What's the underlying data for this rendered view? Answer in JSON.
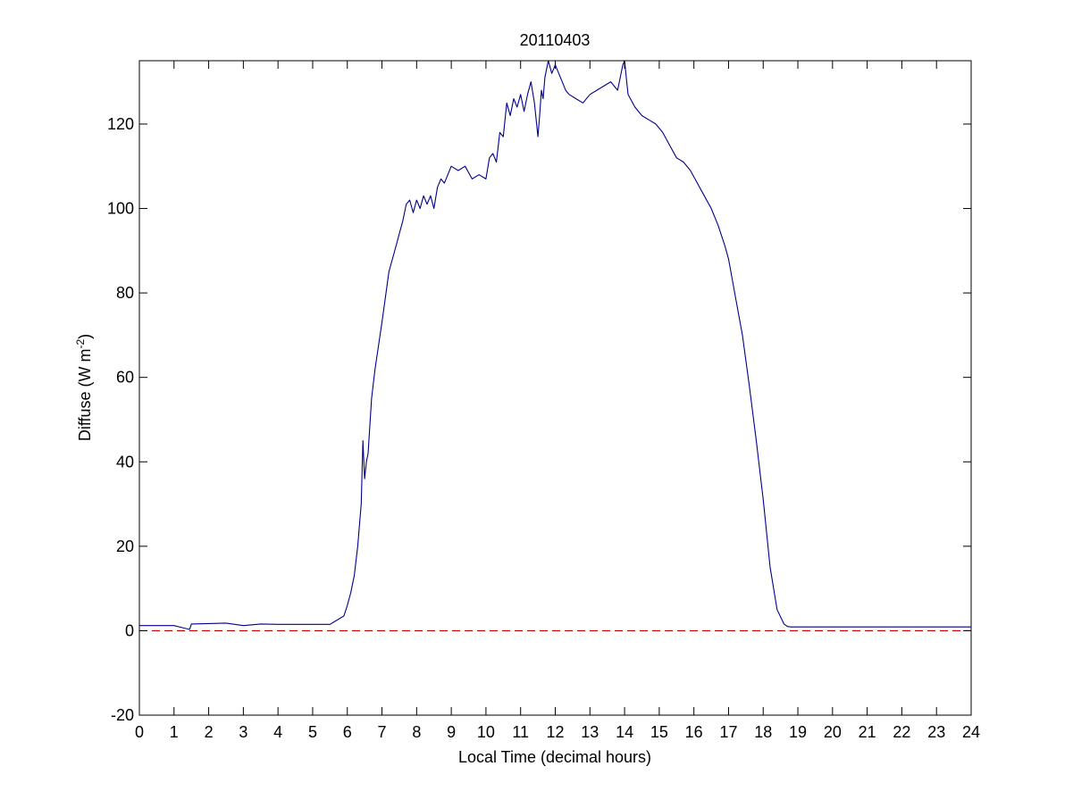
{
  "chart_data": {
    "type": "line",
    "title": "20110403",
    "xlabel": "Local Time (decimal hours)",
    "ylabel": "Diffuse (W m",
    "ylabel_superscript": "-2",
    "ylabel_close": ")",
    "xlim": [
      0,
      24
    ],
    "ylim": [
      -20,
      135
    ],
    "xticks": [
      0,
      1,
      2,
      3,
      4,
      5,
      6,
      7,
      8,
      9,
      10,
      11,
      12,
      13,
      14,
      15,
      16,
      17,
      18,
      19,
      20,
      21,
      22,
      23,
      24
    ],
    "yticks": [
      -20,
      0,
      20,
      40,
      60,
      80,
      100,
      120
    ],
    "grid": false,
    "colors": {
      "series": "#00008b",
      "reference": "#c00000",
      "axes": "#000000"
    },
    "reference_line": {
      "y": 0,
      "style": "dashed"
    },
    "series": [
      {
        "x": [
          0,
          1,
          1.2,
          1.45,
          1.5,
          2,
          2.5,
          3,
          3.5,
          4,
          4.5,
          5,
          5.5,
          5.7,
          5.9,
          6.0,
          6.1,
          6.2,
          6.3,
          6.4,
          6.45,
          6.5,
          6.55,
          6.6,
          6.7,
          6.8,
          7.0,
          7.2,
          7.4,
          7.5,
          7.6,
          7.7,
          7.8,
          7.9,
          8.0,
          8.1,
          8.2,
          8.3,
          8.4,
          8.5,
          8.6,
          8.7,
          8.8,
          9.0,
          9.2,
          9.4,
          9.6,
          9.8,
          10.0,
          10.1,
          10.2,
          10.3,
          10.4,
          10.5,
          10.6,
          10.7,
          10.8,
          10.9,
          11.0,
          11.1,
          11.2,
          11.3,
          11.4,
          11.5,
          11.55,
          11.6,
          11.65,
          11.7,
          11.8,
          11.9,
          12.0,
          12.1,
          12.2,
          12.3,
          12.4,
          12.6,
          12.8,
          13.0,
          13.2,
          13.4,
          13.6,
          13.8,
          13.95,
          14.0,
          14.05,
          14.1,
          14.3,
          14.5,
          14.7,
          14.9,
          15.1,
          15.3,
          15.5,
          15.7,
          15.9,
          16.1,
          16.3,
          16.5,
          16.7,
          16.9,
          17.0,
          17.2,
          17.4,
          17.6,
          17.8,
          18.0,
          18.2,
          18.4,
          18.6,
          18.7,
          18.8,
          18.9,
          19.0,
          19.5,
          20,
          21,
          22,
          23,
          24
        ],
        "y": [
          1.2,
          1.2,
          0.8,
          0.3,
          1.6,
          1.7,
          1.8,
          1.2,
          1.6,
          1.5,
          1.5,
          1.5,
          1.5,
          2.5,
          3.5,
          6,
          9,
          13,
          20,
          30,
          45,
          36,
          40,
          42,
          55,
          62,
          73,
          85,
          91,
          94,
          97,
          101,
          102,
          99,
          102,
          100,
          103,
          101,
          103,
          100,
          105,
          107,
          106,
          110,
          109,
          110,
          107,
          108,
          107,
          112,
          113,
          111,
          118,
          117,
          125,
          122,
          126,
          124,
          127,
          123,
          127,
          130,
          125,
          117,
          122,
          128,
          126,
          131,
          135,
          132,
          134,
          132,
          130,
          128,
          127,
          126,
          125,
          127,
          128,
          129,
          130,
          128,
          134,
          135,
          131,
          127,
          124,
          122,
          121,
          120,
          118,
          115,
          112,
          111,
          109,
          106,
          103,
          100,
          96,
          91,
          88,
          79,
          70,
          58,
          45,
          31,
          15,
          5,
          1.6,
          1.0,
          0.9,
          0.9,
          0.9,
          0.9,
          0.9,
          0.9,
          0.9,
          0.9,
          0.9
        ]
      }
    ]
  }
}
